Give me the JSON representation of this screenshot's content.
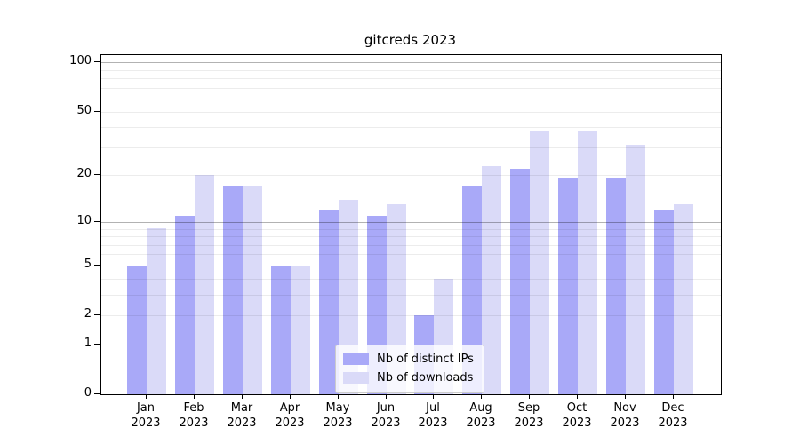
{
  "figure": {
    "title": "gitcreds 2023"
  },
  "chart_data": {
    "type": "bar",
    "title": "gitcreds 2023",
    "categories": [
      "Jan 2023",
      "Feb 2023",
      "Mar 2023",
      "Apr 2023",
      "May 2023",
      "Jun 2023",
      "Jul 2023",
      "Aug 2023",
      "Sep 2023",
      "Oct 2023",
      "Nov 2023",
      "Dec 2023"
    ],
    "series": [
      {
        "name": "Nb of distinct IPs",
        "color": "#a9a9f8",
        "values": [
          5,
          11,
          17,
          5,
          12,
          11,
          2,
          17,
          22,
          19,
          19,
          12
        ]
      },
      {
        "name": "Nb of downloads",
        "color": "#dadaf8",
        "values": [
          9,
          20,
          17,
          5,
          14,
          13,
          4,
          23,
          38,
          38,
          31,
          13
        ]
      }
    ],
    "xlabel": "",
    "ylabel": "",
    "yticks": [
      0,
      1,
      2,
      5,
      10,
      20,
      50,
      100
    ],
    "ylim": [
      0,
      100
    ],
    "y_scale": "log(1+v)",
    "grid": {
      "on": true,
      "major_at": [
        1,
        10,
        100
      ],
      "minor_at": [
        2,
        3,
        4,
        5,
        6,
        7,
        8,
        9,
        20,
        30,
        40,
        50,
        60,
        70,
        80,
        90
      ]
    },
    "legend_position": "lower-center",
    "axis_color": "#000000",
    "background_color": "#ffffff"
  }
}
